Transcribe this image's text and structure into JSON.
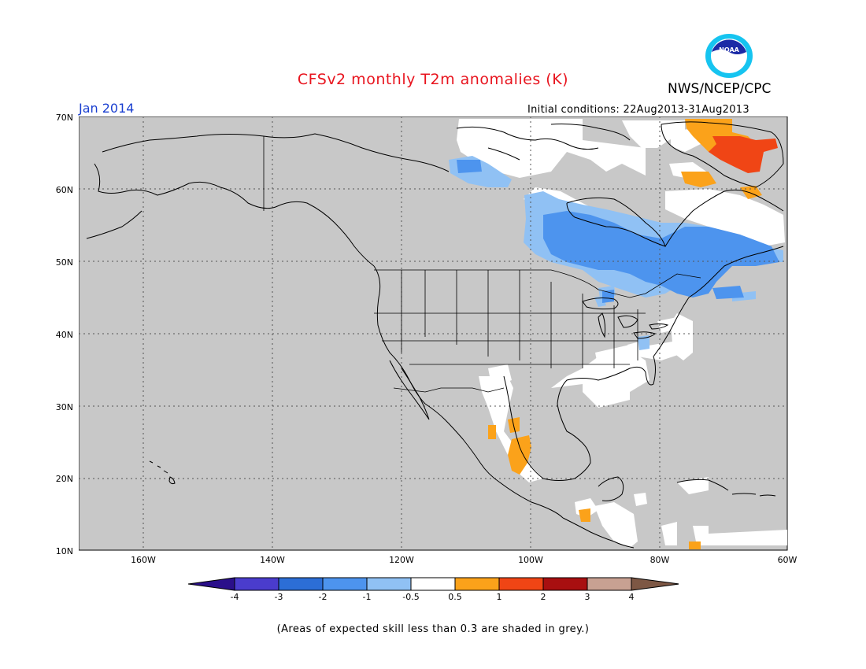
{
  "title": "CFSv2 monthly T2m anomalies (K)",
  "agency_label": "NWS/NCEP/CPC",
  "logo_text": "NOAA",
  "valid_month": "Jan 2014",
  "initial_conditions": "Initial conditions: 22Aug2013-31Aug2013",
  "footnote": "(Areas of expected skill less than 0.3 are shaded in grey.)",
  "map": {
    "lat_labels": [
      "70N",
      "60N",
      "50N",
      "40N",
      "30N",
      "20N",
      "10N"
    ],
    "lon_labels": [
      "160W",
      "140W",
      "120W",
      "100W",
      "80W",
      "60W"
    ]
  },
  "colorbar": {
    "ticks": [
      "-4",
      "-3",
      "-2",
      "-1",
      "-0.5",
      "0.5",
      "1",
      "2",
      "3",
      "4"
    ],
    "colors": [
      "#2a0f8a",
      "#4a3ccd",
      "#2c6ed6",
      "#4d94ee",
      "#90c1f4",
      "#ffffff",
      "#fba21a",
      "#f04515",
      "#a80f10",
      "#c8a192",
      "#7d5744"
    ]
  },
  "colors": {
    "land_grey": "#c8c8c8",
    "title_red": "#e8141e",
    "month_blue": "#1a3fd0"
  }
}
